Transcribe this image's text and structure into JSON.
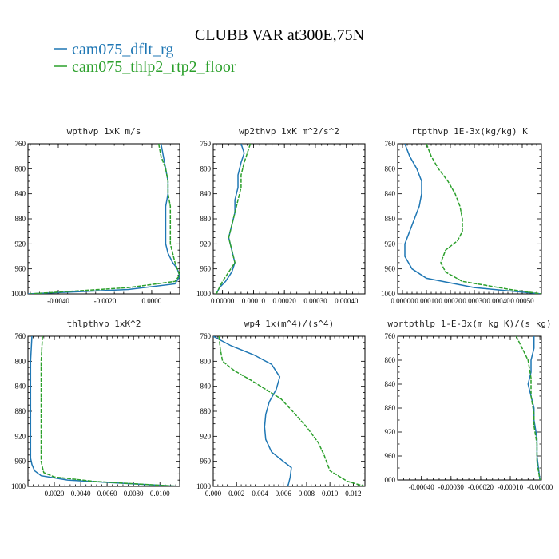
{
  "figure": {
    "title": "CLUBB VAR at300E,75N",
    "legend": [
      {
        "label": "cam075_dflt_rg",
        "color": "#1f77b4"
      },
      {
        "label": "cam075_thlp2_rtp2_floor",
        "color": "#2ca02c"
      }
    ]
  },
  "chart_data": [
    {
      "type": "line",
      "title": "wpthvp  1xK m/s",
      "ylim": [
        760,
        1000
      ],
      "yticks": [
        760,
        800,
        840,
        880,
        920,
        960,
        1000
      ],
      "ytick_labels": [
        "760",
        "800",
        "840",
        "880",
        "920",
        "960",
        "1000"
      ],
      "xlim": [
        -0.0053,
        0.0012
      ],
      "xticks": [
        -0.004,
        -0.002,
        0.0
      ],
      "xtick_labels": [
        "-0.0040",
        "-0.0020",
        "0.0000"
      ],
      "series": [
        {
          "name": "cam075_dflt_rg",
          "color": "#1f77b4",
          "x": [
            0.0004,
            0.0005,
            0.0006,
            0.0007,
            0.0007,
            0.0006,
            0.0006,
            0.0006,
            0.0006,
            0.0007,
            0.0009,
            0.0011,
            0.0012,
            0.001,
            -0.001,
            -0.0053
          ],
          "y": [
            760,
            780,
            800,
            820,
            840,
            860,
            880,
            900,
            920,
            935,
            950,
            960,
            972,
            984,
            993,
            1000
          ]
        },
        {
          "name": "cam075_thlp2_rtp2_floor",
          "color": "#2ca02c",
          "x": [
            0.0003,
            0.0004,
            0.0006,
            0.0007,
            0.0007,
            0.0008,
            0.0008,
            0.0008,
            0.0008,
            0.0009,
            0.001,
            0.0011,
            0.0012,
            0.001,
            -0.001,
            -0.0052
          ],
          "y": [
            760,
            780,
            800,
            820,
            840,
            860,
            880,
            900,
            920,
            935,
            950,
            960,
            970,
            980,
            990,
            1000
          ]
        }
      ]
    },
    {
      "type": "line",
      "title": "wp2thvp  1xK m^2/s^2",
      "ylim": [
        760,
        1000
      ],
      "yticks": [
        760,
        800,
        840,
        880,
        920,
        960,
        1000
      ],
      "ytick_labels": [
        "760",
        "800",
        "840",
        "880",
        "920",
        "960",
        "1000"
      ],
      "xlim": [
        -3e-05,
        0.00046
      ],
      "xticks": [
        0.0,
        0.0001,
        0.0002,
        0.0003,
        0.0004
      ],
      "xtick_labels": [
        "0.00000",
        "0.00010",
        "0.00020",
        "0.00030",
        "0.00040"
      ],
      "series": [
        {
          "name": "cam075_dflt_rg",
          "color": "#1f77b4",
          "x": [
            6e-05,
            7e-05,
            6e-05,
            5e-05,
            5e-05,
            4e-05,
            4e-05,
            3e-05,
            2e-05,
            3e-05,
            4e-05,
            3e-05,
            1e-05,
            -1e-05,
            -2e-05
          ],
          "y": [
            760,
            775,
            790,
            810,
            830,
            850,
            870,
            890,
            910,
            930,
            950,
            965,
            980,
            990,
            1000
          ]
        },
        {
          "name": "cam075_thlp2_rtp2_floor",
          "color": "#2ca02c",
          "x": [
            9e-05,
            8e-05,
            7e-05,
            6e-05,
            6e-05,
            5e-05,
            4e-05,
            3e-05,
            2e-05,
            3e-05,
            4e-05,
            2e-05,
            0.0,
            -1e-05,
            -2e-05
          ],
          "y": [
            760,
            775,
            790,
            810,
            830,
            850,
            870,
            890,
            910,
            930,
            950,
            965,
            980,
            990,
            1000
          ]
        }
      ]
    },
    {
      "type": "line",
      "title": "rtpthvp  1E-3x(kg/kg) K",
      "ylim": [
        760,
        1000
      ],
      "yticks": [
        760,
        800,
        840,
        880,
        920,
        960,
        1000
      ],
      "ytick_labels": [
        "760",
        "800",
        "840",
        "880",
        "920",
        "960",
        "1000"
      ],
      "xlim": [
        -2e-05,
        0.00058
      ],
      "xticks": [
        0.0,
        0.0001,
        0.0002,
        0.0003,
        0.0004,
        0.0005
      ],
      "xtick_labels": [
        "0.00000",
        "0.00010",
        "0.00020",
        "0.00030",
        "0.00040",
        "0.00050"
      ],
      "series": [
        {
          "name": "cam075_dflt_rg",
          "color": "#1f77b4",
          "x": [
            1e-05,
            3e-05,
            6e-05,
            8e-05,
            8e-05,
            7e-05,
            5e-05,
            3e-05,
            1e-05,
            1e-05,
            4e-05,
            0.0001,
            0.0003,
            0.00058
          ],
          "y": [
            760,
            780,
            800,
            820,
            840,
            860,
            880,
            900,
            920,
            940,
            960,
            975,
            990,
            1000
          ]
        },
        {
          "name": "cam075_thlp2_rtp2_floor",
          "color": "#2ca02c",
          "x": [
            0.0001,
            0.00012,
            0.00015,
            0.00019,
            0.00022,
            0.00024,
            0.00025,
            0.00025,
            0.00023,
            0.00018,
            0.00016,
            0.00018,
            0.00025,
            0.00045,
            0.00058
          ],
          "y": [
            760,
            780,
            800,
            820,
            840,
            860,
            880,
            900,
            915,
            930,
            950,
            965,
            980,
            993,
            1000
          ]
        }
      ]
    },
    {
      "type": "line",
      "title": "thlpthvp  1xK^2",
      "ylim": [
        760,
        1000
      ],
      "yticks": [
        760,
        800,
        840,
        880,
        920,
        960,
        1000
      ],
      "ytick_labels": [
        "760",
        "800",
        "840",
        "880",
        "920",
        "960",
        "1000"
      ],
      "xlim": [
        0.0,
        0.0115
      ],
      "xticks": [
        0.002,
        0.004,
        0.006,
        0.008,
        0.01
      ],
      "xtick_labels": [
        "0.0020",
        "0.0040",
        "0.0060",
        "0.0080",
        "0.0100"
      ],
      "series": [
        {
          "name": "cam075_dflt_rg",
          "color": "#1f77b4",
          "x": [
            0.0003,
            0.0002,
            0.0002,
            0.0002,
            0.0002,
            0.0002,
            0.0002,
            0.0002,
            0.0003,
            0.0005,
            0.001,
            0.003,
            0.008,
            0.0115
          ],
          "y": [
            760,
            800,
            840,
            880,
            900,
            920,
            940,
            955,
            965,
            975,
            983,
            990,
            996,
            1000
          ]
        },
        {
          "name": "cam075_thlp2_rtp2_floor",
          "color": "#2ca02c",
          "x": [
            0.0011,
            0.001,
            0.001,
            0.001,
            0.001,
            0.001,
            0.001,
            0.0011,
            0.0012,
            0.002,
            0.005,
            0.009,
            0.0115
          ],
          "y": [
            760,
            800,
            840,
            880,
            920,
            940,
            960,
            970,
            978,
            985,
            992,
            997,
            1000
          ]
        }
      ]
    },
    {
      "type": "line",
      "title": "wp4  1x(m^4)/(s^4)",
      "ylim": [
        760,
        1000
      ],
      "yticks": [
        760,
        800,
        840,
        880,
        920,
        960,
        1000
      ],
      "ytick_labels": [
        "760",
        "800",
        "840",
        "880",
        "920",
        "960",
        "1000"
      ],
      "xlim": [
        0.0,
        0.013
      ],
      "xticks": [
        0.0,
        0.002,
        0.004,
        0.006,
        0.008,
        0.01,
        0.012
      ],
      "xtick_labels": [
        "0.000",
        "0.002",
        "0.004",
        "0.006",
        "0.008",
        "0.010",
        "0.012"
      ],
      "series": [
        {
          "name": "cam075_dflt_rg",
          "color": "#1f77b4",
          "x": [
            0.0,
            0.0015,
            0.0035,
            0.005,
            0.0057,
            0.0054,
            0.0048,
            0.0045,
            0.0044,
            0.0045,
            0.005,
            0.006,
            0.0067,
            0.0066,
            0.0064
          ],
          "y": [
            760,
            775,
            790,
            805,
            825,
            845,
            865,
            885,
            905,
            925,
            945,
            960,
            970,
            985,
            1000
          ]
        },
        {
          "name": "cam075_thlp2_rtp2_floor",
          "color": "#2ca02c",
          "x": [
            0.0005,
            0.0006,
            0.0008,
            0.0018,
            0.0032,
            0.0045,
            0.0058,
            0.0068,
            0.008,
            0.009,
            0.0095,
            0.01,
            0.0115,
            0.013
          ],
          "y": [
            760,
            780,
            800,
            815,
            830,
            845,
            860,
            880,
            905,
            930,
            950,
            975,
            992,
            1000
          ]
        }
      ]
    },
    {
      "type": "line",
      "title": "wprtpthlp  1-E-3x(m kg K)/(s kg)",
      "ylim": [
        760,
        1000
      ],
      "yticks": [
        760,
        800,
        840,
        880,
        920,
        960,
        1000
      ],
      "ytick_labels": [
        "760",
        "800",
        "840",
        "880",
        "920",
        "960",
        "1000"
      ],
      "xlim": [
        -0.00048,
        5e-06
      ],
      "xticks": [
        -0.0004,
        -0.0003,
        -0.0002,
        -0.0001,
        0.0
      ],
      "xtick_labels": [
        "-0.00040",
        "-0.00030",
        "-0.00020",
        "-0.00010",
        "-0.00000"
      ],
      "series": [
        {
          "name": "cam075_dflt_rg",
          "color": "#1f77b4",
          "x": [
            -2e-05,
            -2e-05,
            -3e-05,
            -3e-05,
            -4e-05,
            -3e-05,
            -2e-05,
            -2e-05,
            -1e-05,
            -1e-05,
            0.0
          ],
          "y": [
            760,
            780,
            800,
            820,
            840,
            860,
            880,
            900,
            930,
            960,
            1000
          ]
        },
        {
          "name": "cam075_thlp2_rtp2_floor",
          "color": "#2ca02c",
          "x": [
            -8e-05,
            -6e-05,
            -4e-05,
            -3e-05,
            -3e-05,
            -2e-05,
            -2e-05,
            -1e-05,
            -1e-05,
            0.0
          ],
          "y": [
            760,
            780,
            800,
            830,
            860,
            890,
            910,
            940,
            970,
            1000
          ]
        }
      ]
    }
  ]
}
